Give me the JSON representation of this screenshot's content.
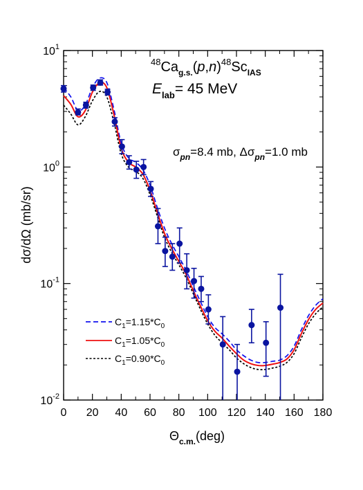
{
  "chart_data": {
    "type": "scatter",
    "xlabel": "Θ",
    "xlabel_sub": "c.m.",
    "xlabel_tail": "(deg)",
    "ylabel": "dσ/dΩ (mb/sr)",
    "xlim": [
      0,
      180
    ],
    "ylim": [
      0.01,
      10
    ],
    "yscale": "log",
    "grid": false,
    "x_ticks": [
      "0",
      "20",
      "40",
      "60",
      "80",
      "100",
      "120",
      "140",
      "160",
      "180"
    ],
    "y_ticks": [
      {
        "base": "10",
        "exp": "1"
      },
      {
        "base": "10",
        "exp": "0"
      },
      {
        "base": "10",
        "exp": "-1"
      },
      {
        "base": "10",
        "exp": "-2"
      }
    ],
    "annotations": {
      "reaction": {
        "pre_sup": "48",
        "t1": "Ca",
        "t1_sub": "g.s.",
        "t2": "(",
        "t2_it": "p",
        "t2_comma": ",",
        "t2_it2": "n",
        "t2_close": ")",
        "post_sup": "48",
        "t3": "Sc",
        "t3_sub": "IAS"
      },
      "energy": {
        "sym": "E",
        "sub": "lab",
        "value": "= 45 MeV"
      },
      "sigma": {
        "sym": "σ",
        "sub": "pn",
        "val": "=8.4 mb, Δσ",
        "sub2": "pn",
        "val2": "=1.0 mb"
      }
    },
    "legend_position": "bottom-left",
    "series": [
      {
        "name": "C1=1.15*C0",
        "label": {
          "c": "C",
          "s1": "1",
          "mid": "=1.15*C",
          "s2": "0"
        },
        "color": "#1010ee",
        "style": "dashed",
        "x": [
          0,
          5,
          10,
          15,
          20,
          25,
          30,
          35,
          40,
          45,
          50,
          55,
          60,
          65,
          70,
          75,
          80,
          85,
          90,
          95,
          100,
          105,
          110,
          115,
          120,
          125,
          130,
          135,
          140,
          145,
          150,
          155,
          160,
          165,
          170,
          175,
          180
        ],
        "y": [
          4.8,
          4.0,
          3.05,
          3.4,
          4.8,
          5.8,
          5.3,
          3.1,
          1.6,
          1.2,
          1.1,
          0.95,
          0.7,
          0.45,
          0.3,
          0.22,
          0.17,
          0.13,
          0.095,
          0.07,
          0.052,
          0.042,
          0.037,
          0.032,
          0.027,
          0.024,
          0.022,
          0.021,
          0.021,
          0.0215,
          0.022,
          0.024,
          0.029,
          0.04,
          0.053,
          0.065,
          0.074
        ]
      },
      {
        "name": "C1=1.05*C0",
        "label": {
          "c": "C",
          "s1": "1",
          "mid": "=1.05*C",
          "s2": "0"
        },
        "color": "#ee1010",
        "style": "solid",
        "x": [
          0,
          5,
          10,
          15,
          20,
          25,
          30,
          35,
          40,
          45,
          50,
          55,
          60,
          65,
          70,
          75,
          80,
          85,
          90,
          95,
          100,
          105,
          110,
          115,
          120,
          125,
          130,
          135,
          140,
          145,
          150,
          155,
          160,
          165,
          170,
          175,
          180
        ],
        "y": [
          4.1,
          3.45,
          2.7,
          3.05,
          4.4,
          5.3,
          4.8,
          2.8,
          1.45,
          1.1,
          1.0,
          0.87,
          0.63,
          0.41,
          0.27,
          0.2,
          0.155,
          0.12,
          0.087,
          0.064,
          0.048,
          0.039,
          0.034,
          0.029,
          0.025,
          0.022,
          0.0205,
          0.0198,
          0.0198,
          0.0203,
          0.021,
          0.0225,
          0.027,
          0.037,
          0.049,
          0.06,
          0.068
        ]
      },
      {
        "name": "C1=0.90*C0",
        "label": {
          "c": "C",
          "s1": "1",
          "mid": "=0.90*C",
          "s2": "0"
        },
        "color": "#000000",
        "style": "dotted",
        "x": [
          0,
          5,
          10,
          15,
          20,
          25,
          30,
          35,
          40,
          45,
          50,
          55,
          60,
          65,
          70,
          75,
          80,
          85,
          90,
          95,
          100,
          105,
          110,
          115,
          120,
          125,
          130,
          135,
          140,
          145,
          150,
          155,
          160,
          165,
          170,
          175,
          180
        ],
        "y": [
          3.4,
          2.85,
          2.3,
          2.7,
          3.7,
          4.45,
          4.0,
          2.4,
          1.3,
          1.0,
          0.92,
          0.8,
          0.58,
          0.38,
          0.25,
          0.185,
          0.145,
          0.112,
          0.082,
          0.06,
          0.045,
          0.036,
          0.031,
          0.027,
          0.023,
          0.0205,
          0.019,
          0.0183,
          0.0183,
          0.0188,
          0.0195,
          0.021,
          0.025,
          0.034,
          0.045,
          0.055,
          0.063
        ]
      }
    ],
    "data_points": {
      "color": "#0a14a0",
      "points": [
        {
          "x": 0,
          "y": 4.7,
          "lo": 4.4,
          "hi": 5.0
        },
        {
          "x": 10,
          "y": 2.95,
          "lo": 2.8,
          "hi": 3.15
        },
        {
          "x": 15.5,
          "y": 3.4,
          "lo": 3.2,
          "hi": 3.6
        },
        {
          "x": 20.5,
          "y": 4.8,
          "lo": 4.55,
          "hi": 5.05
        },
        {
          "x": 25.5,
          "y": 5.3,
          "lo": 5.05,
          "hi": 5.6
        },
        {
          "x": 30.5,
          "y": 4.4,
          "lo": 4.15,
          "hi": 4.65
        },
        {
          "x": 35.5,
          "y": 2.45,
          "lo": 2.25,
          "hi": 2.65
        },
        {
          "x": 40.5,
          "y": 1.5,
          "lo": 1.3,
          "hi": 1.72
        },
        {
          "x": 45.5,
          "y": 1.1,
          "lo": 0.96,
          "hi": 1.25
        },
        {
          "x": 50.5,
          "y": 0.95,
          "lo": 0.8,
          "hi": 1.12
        },
        {
          "x": 55.5,
          "y": 1.0,
          "lo": 0.86,
          "hi": 1.16
        },
        {
          "x": 60.5,
          "y": 0.65,
          "lo": 0.56,
          "hi": 0.75
        },
        {
          "x": 65.5,
          "y": 0.31,
          "lo": 0.22,
          "hi": 0.44
        },
        {
          "x": 70.5,
          "y": 0.19,
          "lo": 0.14,
          "hi": 0.25
        },
        {
          "x": 75.5,
          "y": 0.17,
          "lo": 0.13,
          "hi": 0.22
        },
        {
          "x": 80.5,
          "y": 0.22,
          "lo": 0.15,
          "hi": 0.3
        },
        {
          "x": 85.5,
          "y": 0.13,
          "lo": 0.09,
          "hi": 0.18
        },
        {
          "x": 90.5,
          "y": 0.105,
          "lo": 0.075,
          "hi": 0.135
        },
        {
          "x": 95.5,
          "y": 0.09,
          "lo": 0.07,
          "hi": 0.115
        },
        {
          "x": 100.5,
          "y": 0.06,
          "lo": 0.045,
          "hi": 0.08
        },
        {
          "x": 110.5,
          "y": 0.03,
          "lo": 0.01,
          "hi": 0.052
        },
        {
          "x": 120.5,
          "y": 0.0175,
          "lo": 0.01,
          "hi": 0.03
        },
        {
          "x": 130.5,
          "y": 0.044,
          "lo": 0.031,
          "hi": 0.06
        },
        {
          "x": 140.5,
          "y": 0.031,
          "lo": 0.016,
          "hi": 0.047
        },
        {
          "x": 150.5,
          "y": 0.062,
          "lo": 0.01,
          "hi": 0.12
        }
      ]
    }
  }
}
